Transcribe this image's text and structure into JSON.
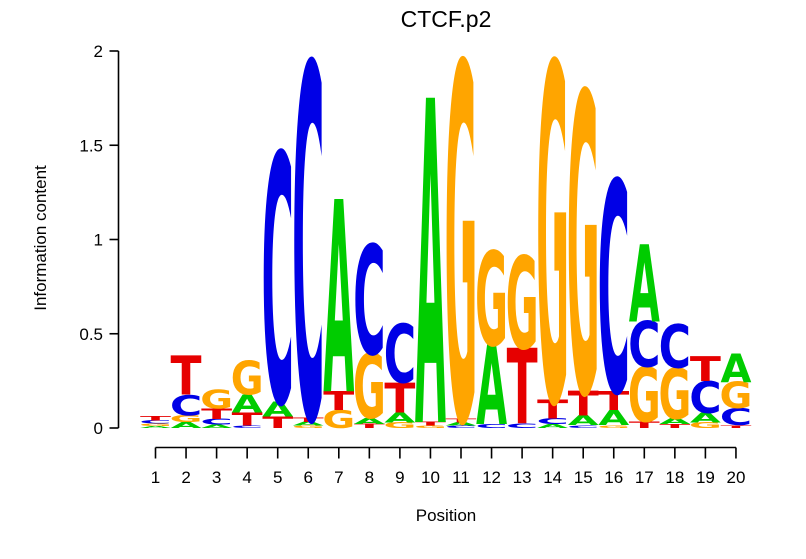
{
  "title": "CTCF.p2",
  "y_axis": {
    "label": "Information content",
    "ticks": [
      "0",
      "0.5",
      "1",
      "1.5",
      "2"
    ],
    "tick_values": [
      0,
      0.5,
      1,
      1.5,
      2
    ],
    "max": 2
  },
  "x_axis": {
    "label": "Position",
    "ticks": [
      "1",
      "2",
      "3",
      "4",
      "5",
      "6",
      "7",
      "8",
      "9",
      "10",
      "11",
      "12",
      "13",
      "14",
      "15",
      "16",
      "17",
      "18",
      "19",
      "20"
    ]
  },
  "colors": {
    "A": "#00cc00",
    "C": "#0000e6",
    "G": "#ffa500",
    "T": "#e60000"
  },
  "chart_data": {
    "type": "bar",
    "variant": "sequence-logo",
    "title": "CTCF.p2",
    "xlabel": "Position",
    "ylabel": "Information content",
    "ylim": [
      0,
      2
    ],
    "grid": false,
    "legend": false,
    "categories": [
      1,
      2,
      3,
      4,
      5,
      6,
      7,
      8,
      9,
      10,
      11,
      12,
      13,
      14,
      15,
      16,
      17,
      18,
      19,
      20
    ],
    "stacks_note": "letters listed top-to-bottom per position; ic = information content in bits",
    "stacks": [
      [
        {
          "letter": "T",
          "ic": 0.022
        },
        {
          "letter": "C",
          "ic": 0.016
        },
        {
          "letter": "G",
          "ic": 0.013
        },
        {
          "letter": "A",
          "ic": 0.01
        }
      ],
      [
        {
          "letter": "T",
          "ic": 0.205
        },
        {
          "letter": "C",
          "ic": 0.108
        },
        {
          "letter": "G",
          "ic": 0.037
        },
        {
          "letter": "A",
          "ic": 0.032
        }
      ],
      [
        {
          "letter": "G",
          "ic": 0.1
        },
        {
          "letter": "T",
          "ic": 0.055
        },
        {
          "letter": "C",
          "ic": 0.03
        },
        {
          "letter": "A",
          "ic": 0.018
        }
      ],
      [
        {
          "letter": "G",
          "ic": 0.18
        },
        {
          "letter": "A",
          "ic": 0.095
        },
        {
          "letter": "T",
          "ic": 0.07
        },
        {
          "letter": "C",
          "ic": 0.012
        }
      ],
      [
        {
          "letter": "C",
          "ic": 1.32
        },
        {
          "letter": "A",
          "ic": 0.08
        },
        {
          "letter": "T",
          "ic": 0.06
        }
      ],
      [
        {
          "letter": "C",
          "ic": 1.88
        },
        {
          "letter": "T",
          "ic": 0.025
        },
        {
          "letter": "A",
          "ic": 0.02
        },
        {
          "letter": "G",
          "ic": 0.012
        }
      ],
      [
        {
          "letter": "A",
          "ic": 1.02
        },
        {
          "letter": "T",
          "ic": 0.1
        },
        {
          "letter": "G",
          "ic": 0.095
        }
      ],
      [
        {
          "letter": "C",
          "ic": 0.58
        },
        {
          "letter": "G",
          "ic": 0.34
        },
        {
          "letter": "A",
          "ic": 0.032
        },
        {
          "letter": "T",
          "ic": 0.022
        }
      ],
      [
        {
          "letter": "C",
          "ic": 0.31
        },
        {
          "letter": "T",
          "ic": 0.16
        },
        {
          "letter": "A",
          "ic": 0.052
        },
        {
          "letter": "G",
          "ic": 0.03
        }
      ],
      [
        {
          "letter": "A",
          "ic": 1.72
        },
        {
          "letter": "T",
          "ic": 0.02
        },
        {
          "letter": "G",
          "ic": 0.012
        }
      ],
      [
        {
          "letter": "G",
          "ic": 1.89
        },
        {
          "letter": "T",
          "ic": 0.02
        },
        {
          "letter": "A",
          "ic": 0.018
        },
        {
          "letter": "C",
          "ic": 0.012
        }
      ],
      [
        {
          "letter": "G",
          "ic": 0.5
        },
        {
          "letter": "A",
          "ic": 0.42
        },
        {
          "letter": "C",
          "ic": 0.02
        }
      ],
      [
        {
          "letter": "G",
          "ic": 0.49
        },
        {
          "letter": "T",
          "ic": 0.4
        },
        {
          "letter": "C",
          "ic": 0.025
        }
      ],
      [
        {
          "letter": "G",
          "ic": 1.79
        },
        {
          "letter": "T",
          "ic": 0.1
        },
        {
          "letter": "C",
          "ic": 0.03
        },
        {
          "letter": "A",
          "ic": 0.02
        }
      ],
      [
        {
          "letter": "G",
          "ic": 1.59
        },
        {
          "letter": "T",
          "ic": 0.13
        },
        {
          "letter": "A",
          "ic": 0.05
        },
        {
          "letter": "C",
          "ic": 0.015
        }
      ],
      [
        {
          "letter": "C",
          "ic": 1.12
        },
        {
          "letter": "T",
          "ic": 0.1
        },
        {
          "letter": "A",
          "ic": 0.08
        },
        {
          "letter": "G",
          "ic": 0.015
        }
      ],
      [
        {
          "letter": "A",
          "ic": 0.41
        },
        {
          "letter": "C",
          "ic": 0.24
        },
        {
          "letter": "G",
          "ic": 0.29
        },
        {
          "letter": "T",
          "ic": 0.035
        }
      ],
      [
        {
          "letter": "C",
          "ic": 0.23
        },
        {
          "letter": "G",
          "ic": 0.27
        },
        {
          "letter": "A",
          "ic": 0.03
        },
        {
          "letter": "T",
          "ic": 0.02
        }
      ],
      [
        {
          "letter": "T",
          "ic": 0.13
        },
        {
          "letter": "C",
          "ic": 0.17
        },
        {
          "letter": "A",
          "ic": 0.05
        },
        {
          "letter": "G",
          "ic": 0.03
        }
      ],
      [
        {
          "letter": "A",
          "ic": 0.15
        },
        {
          "letter": "G",
          "ic": 0.14
        },
        {
          "letter": "C",
          "ic": 0.09
        },
        {
          "letter": "T",
          "ic": 0.015
        }
      ]
    ]
  }
}
